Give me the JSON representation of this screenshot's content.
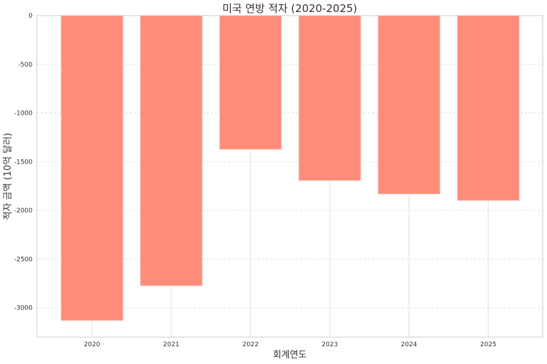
{
  "chart_data": {
    "type": "bar",
    "title": "미국 연방 적자 (2020-2025)",
    "xlabel": "회계연도",
    "ylabel": "적자 금액 (10억 달러)",
    "categories": [
      "2020",
      "2021",
      "2022",
      "2023",
      "2024",
      "2025"
    ],
    "values": [
      -3132,
      -2775,
      -1375,
      -1695,
      -1833,
      -1900
    ],
    "ylim": [
      -3300,
      0
    ],
    "yticks": [
      0,
      -500,
      -1000,
      -1500,
      -2000,
      -2500,
      -3000
    ],
    "grid": true,
    "bar_color": "#ff8c78"
  }
}
